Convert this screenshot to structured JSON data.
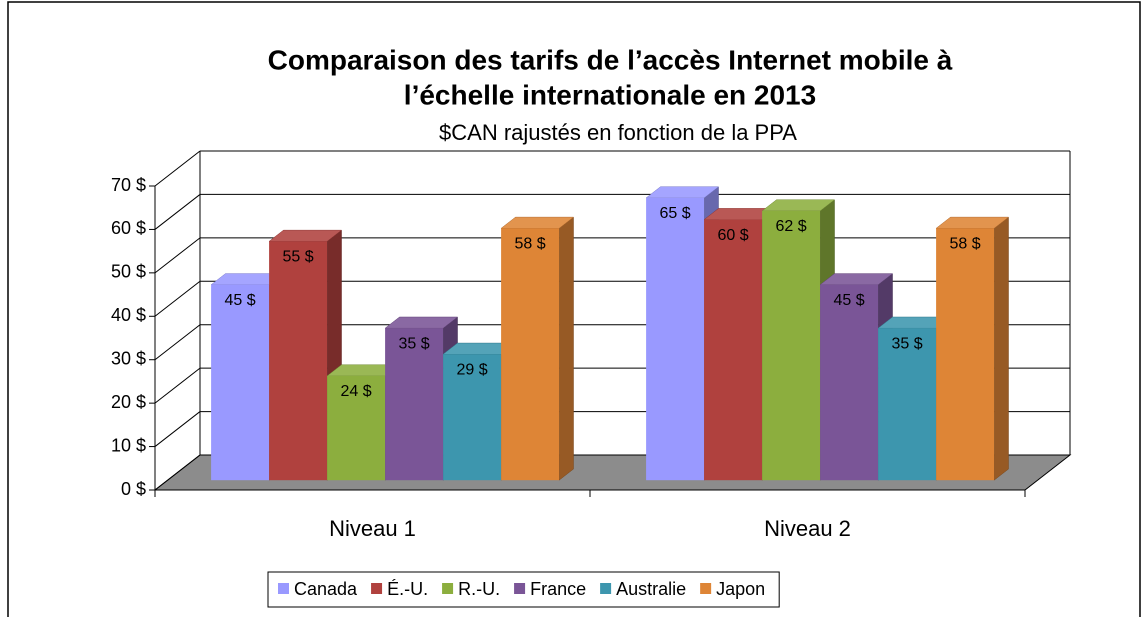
{
  "chart_data": {
    "type": "bar3d",
    "title": [
      "Comparaison des tarifs de l’accès Internet mobile à",
      "l’échelle internationale en 2013"
    ],
    "subtitle": "$CAN rajustés en fonction de la PPA",
    "categories": [
      "Niveau 1",
      "Niveau 2"
    ],
    "series": [
      {
        "name": "Canada",
        "color": "#9999ff",
        "values": [
          45,
          65
        ],
        "value_labels": [
          "45 $",
          "65 $"
        ]
      },
      {
        "name": "É.-U.",
        "color": "#b0413e",
        "values": [
          55,
          60
        ],
        "value_labels": [
          "55 $",
          "60 $"
        ]
      },
      {
        "name": "R.-U.",
        "color": "#8cae3e",
        "values": [
          24,
          62
        ],
        "value_labels": [
          "24 $",
          "62 $"
        ]
      },
      {
        "name": "France",
        "color": "#7a5597",
        "values": [
          35,
          45
        ],
        "value_labels": [
          "35 $",
          "45 $"
        ]
      },
      {
        "name": "Australie",
        "color": "#3d96ae",
        "values": [
          29,
          35
        ],
        "value_labels": [
          "29 $",
          "35 $"
        ]
      },
      {
        "name": "Japon",
        "color": "#de8536",
        "values": [
          58,
          58
        ],
        "value_labels": [
          "58 $",
          "58 $"
        ]
      }
    ],
    "ylim": [
      0,
      70
    ],
    "yticks": [
      {
        "value": 0,
        "label": "0 $"
      },
      {
        "value": 10,
        "label": "10 $"
      },
      {
        "value": 20,
        "label": "20 $"
      },
      {
        "value": 30,
        "label": "30 $"
      },
      {
        "value": 40,
        "label": "40 $"
      },
      {
        "value": 50,
        "label": "50 $"
      },
      {
        "value": 60,
        "label": "60 $"
      },
      {
        "value": 70,
        "label": "70 $"
      }
    ],
    "grid": true,
    "legend": "bottom"
  }
}
